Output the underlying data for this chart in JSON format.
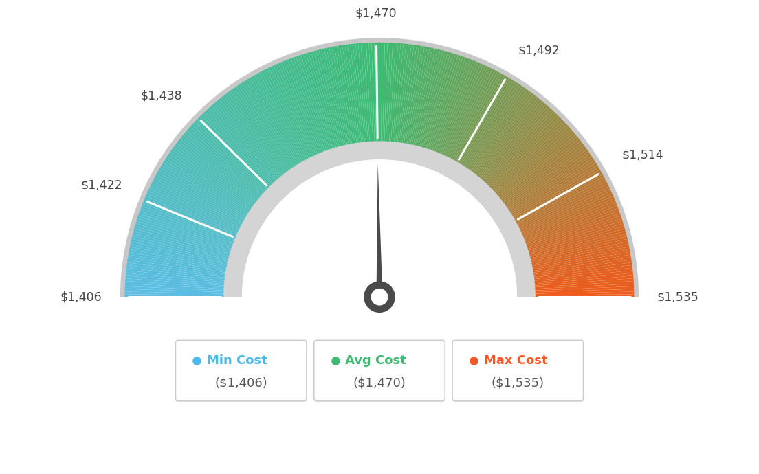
{
  "min_val": 1406,
  "max_val": 1535,
  "avg_val": 1470,
  "tick_labels": [
    "$1,406",
    "$1,422",
    "$1,438",
    "$1,470",
    "$1,492",
    "$1,514",
    "$1,535"
  ],
  "tick_values": [
    1406,
    1422,
    1438,
    1470,
    1492,
    1514,
    1535
  ],
  "color_min": "#5bbde4",
  "color_avg": "#3dbb72",
  "color_max": "#f05a1a",
  "legend_min_color": "#4ab8e8",
  "legend_avg_color": "#3dbb72",
  "legend_max_color": "#f05a28",
  "legend_value_color": "#555555",
  "background_color": "#ffffff",
  "needle_color": "#4a4a4a",
  "hub_color": "#4a4a4a",
  "gray_outer": "#c8c8c8",
  "gray_inner": "#d4d4d4"
}
